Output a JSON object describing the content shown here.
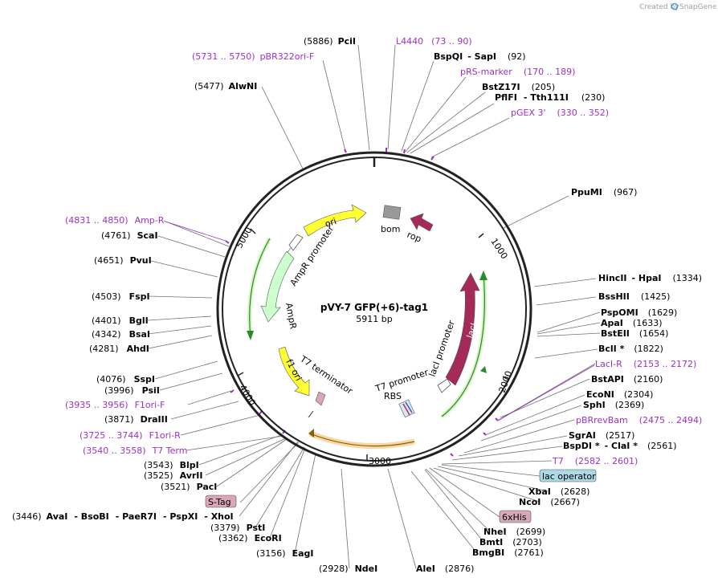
{
  "brand": {
    "text": "Created by",
    "name": "SnapGene"
  },
  "plasmid": {
    "name": "pVY-7 GFP(+6)-tag1",
    "size": "5911 bp"
  },
  "ticks": [
    "1000",
    "2000",
    "3000",
    "4000",
    "5000"
  ],
  "features": {
    "ori": "ori",
    "bom": "bom",
    "rop": "rop",
    "ampr_promoter": "AmpR promoter",
    "ampr": "AmpR",
    "f1_ori": "f1 ori",
    "t7_terminator": "T7 terminator",
    "t7_promoter": "T7 promoter",
    "rbs": "RBS",
    "laci_promoter": "lacI promoter",
    "laci": "lacI"
  },
  "boxed": {
    "lac_operator": "lac operator",
    "s_tag": "S-Tag",
    "his": "6xHis"
  },
  "labels": {
    "pcil": [
      "(5886)",
      "PciI"
    ],
    "l4440": [
      "L4440",
      "(73 .. 90)"
    ],
    "bspqi": [
      "BspQI",
      "- SapI",
      "(92)"
    ],
    "pbr322": [
      "(5731 .. 5750)",
      "pBR322ori-F"
    ],
    "prs": [
      "pRS-marker",
      "(170 .. 189)"
    ],
    "alwni": [
      "(5477)",
      "AlwNI"
    ],
    "bstz17i": [
      "BstZ17I",
      "(205)"
    ],
    "pflfi": [
      "PflFI",
      "- Tth111I",
      "(230)"
    ],
    "pgex3": [
      "pGEX 3'",
      "(330 .. 352)"
    ],
    "ppumi": [
      "PpuMI",
      "(967)"
    ],
    "ampr_prim": [
      "(4831 .. 4850)",
      "Amp-R"
    ],
    "scai": [
      "(4761)",
      "ScaI"
    ],
    "pvui": [
      "(4651)",
      "PvuI"
    ],
    "hincii": [
      "HincII",
      "- HpaI",
      "(1334)"
    ],
    "bsshii": [
      "BssHII",
      "(1425)"
    ],
    "fspi": [
      "(4503)",
      "FspI"
    ],
    "pspomi": [
      "PspOMI",
      "(1629)"
    ],
    "bgli": [
      "(4401)",
      "BglI"
    ],
    "apai": [
      "ApaI",
      "(1633)"
    ],
    "bsai": [
      "(4342)",
      "BsaI"
    ],
    "bsteii": [
      "BstEII",
      "(1654)"
    ],
    "ahdi": [
      "(4281)",
      "AhdI"
    ],
    "bcli": [
      "BclI *",
      "(1822)"
    ],
    "lacir": [
      "LacI-R",
      "(2153 .. 2172)"
    ],
    "sspi": [
      "(4076)",
      "SspI"
    ],
    "bstapi": [
      "BstAPI",
      "(2160)"
    ],
    "psii": [
      "(3996)",
      "PsiI"
    ],
    "f1orif": [
      "(3935 .. 3956)",
      "F1ori-F"
    ],
    "econi": [
      "EcoNI",
      "(2304)"
    ],
    "sphi": [
      "SphI",
      "(2369)"
    ],
    "draiii": [
      "(3871)",
      "DraIII"
    ],
    "pbrrev": [
      "pBRrevBam",
      "(2475 .. 2494)"
    ],
    "f1orir": [
      "(3725 .. 3744)",
      "F1ori-R"
    ],
    "sgrai": [
      "SgrAI",
      "(2517)"
    ],
    "bspdi": [
      "BspDI *",
      "- ClaI *",
      "(2561)"
    ],
    "t7term": [
      "(3540 .. 3558)",
      "T7 Term"
    ],
    "t7prim": [
      "T7",
      "(2582 .. 2601)"
    ],
    "blpi": [
      "(3543)",
      "BlpI"
    ],
    "avrii": [
      "(3525)",
      "AvrII"
    ],
    "paci": [
      "(3521)",
      "PacI"
    ],
    "xbai": [
      "XbaI",
      "(2628)"
    ],
    "ncoi": [
      "NcoI",
      "(2667)"
    ],
    "aval": [
      "(3446)",
      "AvaI",
      "- BsoBI",
      "- PaeR7I",
      "- PspXI",
      "- XhoI"
    ],
    "psti": [
      "(3379)",
      "PstI"
    ],
    "ecori": [
      "(3362)",
      "EcoRI"
    ],
    "nhei": [
      "NheI",
      "(2699)"
    ],
    "bmti": [
      "BmtI",
      "(2703)"
    ],
    "eagi": [
      "(3156)",
      "EagI"
    ],
    "bmgbi": [
      "BmgBI",
      "(2761)"
    ],
    "ndei": [
      "(2928)",
      "NdeI"
    ],
    "alei": [
      "AleI",
      "(2876)"
    ]
  }
}
